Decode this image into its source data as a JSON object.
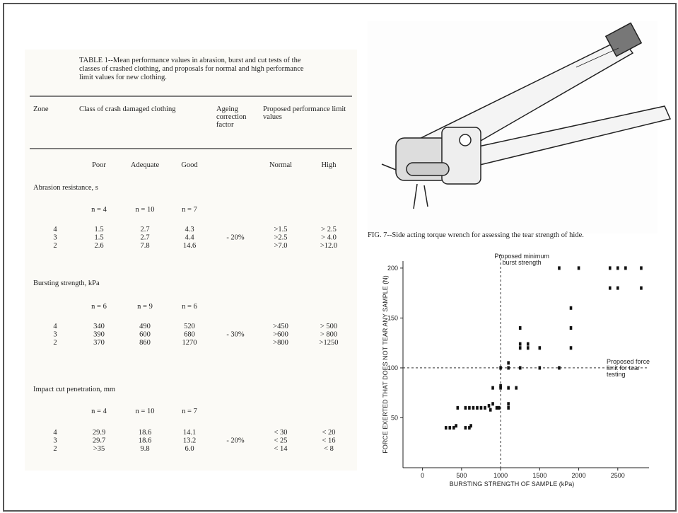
{
  "table": {
    "title": "TABLE 1--Mean performance values in abrasion, burst and cut tests of the classes of crashed clothing, and proposals for normal and high performance limit values for new clothing.",
    "headers": [
      "Zone",
      "Class of crash damaged clothing",
      "Ageing correction factor",
      "Proposed performance limit values"
    ],
    "subheaders": [
      "Poor",
      "Adequate",
      "Good",
      "Normal",
      "High"
    ],
    "sections": [
      {
        "title": "Abrasion resistance, s",
        "n": [
          "n = 4",
          "n = 10",
          "n = 7"
        ],
        "ageing": "- 20%",
        "rows": [
          [
            "4",
            "1.5",
            "2.7",
            "4.3",
            ">1.5",
            "> 2.5"
          ],
          [
            "3",
            "1.5",
            "2.7",
            "4.4",
            ">2.5",
            "> 4.0"
          ],
          [
            "2",
            "2.6",
            "7.8",
            "14.6",
            ">7.0",
            ">12.0"
          ]
        ]
      },
      {
        "title": "Bursting strength, kPa",
        "n": [
          "n = 6",
          "n = 9",
          "n = 6"
        ],
        "ageing": "- 30%",
        "rows": [
          [
            "4",
            "340",
            "490",
            "520",
            ">450",
            ">  500"
          ],
          [
            "3",
            "390",
            "600",
            "680",
            ">600",
            ">  800"
          ],
          [
            "2",
            "370",
            "860",
            "1270",
            ">800",
            ">1250"
          ]
        ]
      },
      {
        "title": "Impact cut penetration, mm",
        "n": [
          "n = 4",
          "n = 10",
          "n = 7"
        ],
        "ageing": "- 20%",
        "rows": [
          [
            "4",
            "29.9",
            "18.6",
            "14.1",
            "<  30",
            "<   20"
          ],
          [
            "3",
            "29.7",
            "18.6",
            "13.2",
            "<  25",
            "<   16"
          ],
          [
            "2",
            ">35",
            "9.8",
            "6.0",
            "<  14",
            "<    8"
          ]
        ]
      }
    ]
  },
  "figure_caption": "FIG. 7--Side acting torque wrench for assessing the tear strength of hide.",
  "chart_data": {
    "type": "scatter",
    "x_label": "BURSTING STRENGTH OF SAMPLE (kPa)",
    "y_label": "FORCE EXERTED THAT DOES NOT TEAR ANY SAMPLE (N)",
    "annotations": [
      "Proposed minimum burst strength",
      "Proposed force limit for tear testing"
    ],
    "vline": 1000,
    "hline": 100,
    "xlim": [
      -250,
      2900
    ],
    "ylim": [
      0,
      207
    ],
    "xticks": [
      0,
      500,
      1000,
      1500,
      2000,
      2500
    ],
    "yticks": [
      50,
      100,
      150,
      200
    ],
    "color": "#111111",
    "x": [
      300,
      350,
      400,
      430,
      550,
      600,
      620,
      450,
      550,
      600,
      650,
      700,
      750,
      800,
      850,
      870,
      900,
      950,
      980,
      900,
      1000,
      1000,
      1100,
      1200,
      1000,
      1100,
      1250,
      1500,
      1750,
      1100,
      1100,
      1100,
      1250,
      1250,
      1350,
      1350,
      1500,
      1250,
      1900,
      1900,
      1900,
      1750,
      2000,
      2400,
      2500,
      2600,
      2800,
      2400,
      2500,
      2800
    ],
    "y": [
      40,
      40,
      40,
      42,
      40,
      40,
      42,
      60,
      60,
      60,
      60,
      60,
      60,
      60,
      62,
      58,
      64,
      60,
      60,
      80,
      80,
      82,
      80,
      80,
      100,
      100,
      100,
      100,
      100,
      105,
      60,
      64,
      120,
      124,
      120,
      124,
      120,
      140,
      120,
      140,
      160,
      200,
      200,
      200,
      200,
      200,
      200,
      180,
      180,
      180
    ]
  }
}
